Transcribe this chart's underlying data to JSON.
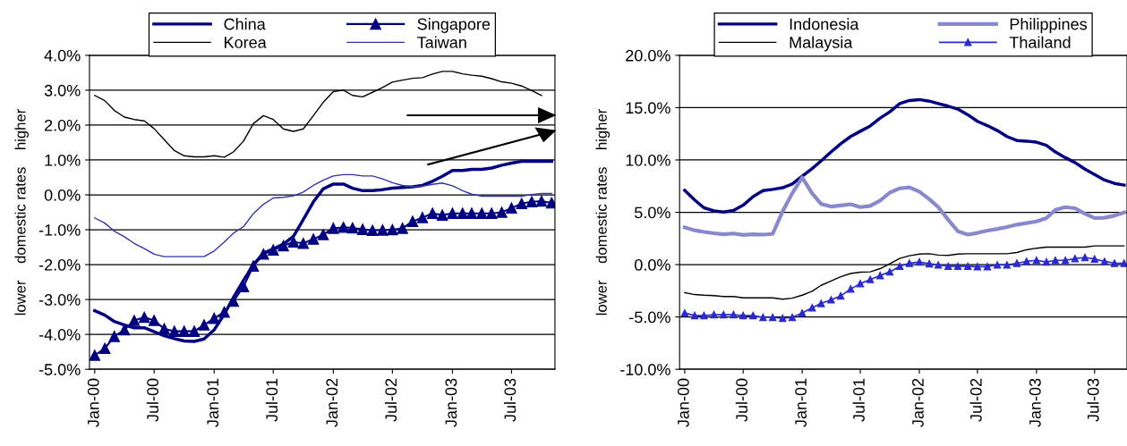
{
  "chart_data": [
    {
      "type": "line",
      "ylabel": "lower    domestic rates    higher",
      "grid": "y",
      "legend": "top",
      "x": [
        "2000-01",
        "2000-02",
        "2000-03",
        "2000-04",
        "2000-05",
        "2000-06",
        "2000-07",
        "2000-08",
        "2000-09",
        "2000-10",
        "2000-11",
        "2000-12",
        "2001-01",
        "2001-02",
        "2001-03",
        "2001-04",
        "2001-05",
        "2001-06",
        "2001-07",
        "2001-08",
        "2001-09",
        "2001-10",
        "2001-11",
        "2001-12",
        "2002-01",
        "2002-02",
        "2002-03",
        "2002-04",
        "2002-05",
        "2002-06",
        "2002-07",
        "2002-08",
        "2002-09",
        "2002-10",
        "2002-11",
        "2002-12",
        "2003-01",
        "2003-02",
        "2003-03",
        "2003-04",
        "2003-05",
        "2003-06",
        "2003-07",
        "2003-08",
        "2003-09",
        "2003-10",
        "2003-11"
      ],
      "xlim": [
        "1999-12-16",
        "2003-11-11"
      ],
      "xticks": [
        {
          "value": "2000-01",
          "label": "Jan-00"
        },
        {
          "value": "2000-07",
          "label": "Jul-00"
        },
        {
          "value": "2001-01",
          "label": "Jan-01"
        },
        {
          "value": "2001-07",
          "label": "Jul-01"
        },
        {
          "value": "2002-01",
          "label": "Jan-02"
        },
        {
          "value": "2002-07",
          "label": "Jul-02"
        },
        {
          "value": "2003-01",
          "label": "Jan-03"
        },
        {
          "value": "2003-07",
          "label": "Jul-03"
        }
      ],
      "ylim": [
        -5,
        4
      ],
      "yticks": [
        {
          "value": -5,
          "label": "-5.0%"
        },
        {
          "value": -4,
          "label": "-4.0%"
        },
        {
          "value": -3,
          "label": "-3.0%"
        },
        {
          "value": -2,
          "label": "-2.0%"
        },
        {
          "value": -1,
          "label": "-1.0%"
        },
        {
          "value": 0,
          "label": "0.0%"
        },
        {
          "value": 1,
          "label": "1.0%"
        },
        {
          "value": 2,
          "label": "2.0%"
        },
        {
          "value": 3,
          "label": "3.0%"
        },
        {
          "value": 4,
          "label": "4.0%"
        }
      ],
      "series": [
        {
          "name": "China",
          "color": "#000080",
          "values": [
            -3.32,
            -3.45,
            -3.63,
            -3.73,
            -3.81,
            -3.81,
            -3.92,
            -4.04,
            -4.12,
            -4.19,
            -4.2,
            -4.13,
            -3.87,
            -3.42,
            -2.94,
            -2.45,
            -2.01,
            -1.67,
            -1.55,
            -1.41,
            -1.19,
            -0.71,
            -0.2,
            0.17,
            0.31,
            0.31,
            0.19,
            0.12,
            0.12,
            0.15,
            0.19,
            0.21,
            0.23,
            0.27,
            0.39,
            0.53,
            0.7,
            0.7,
            0.73,
            0.73,
            0.77,
            0.85,
            0.91,
            0.96,
            0.96,
            0.96,
            0.96
          ]
        },
        {
          "name": "Korea",
          "color": "#000000",
          "values": [
            2.85,
            2.7,
            2.42,
            2.23,
            2.16,
            2.12,
            1.9,
            1.58,
            1.27,
            1.12,
            1.09,
            1.09,
            1.12,
            1.08,
            1.23,
            1.54,
            2.04,
            2.27,
            2.16,
            1.89,
            1.82,
            1.89,
            2.27,
            2.65,
            2.96,
            3.0,
            2.85,
            2.81,
            2.94,
            3.08,
            3.23,
            3.29,
            3.34,
            3.36,
            3.46,
            3.54,
            3.54,
            3.47,
            3.43,
            3.4,
            3.33,
            3.24,
            3.2,
            3.12,
            2.99,
            2.85,
            null
          ]
        },
        {
          "name": "Singapore",
          "color": "#000080",
          "marker": "triangle",
          "values": [
            -4.6,
            -4.4,
            -4.06,
            -3.87,
            -3.6,
            -3.51,
            -3.6,
            -3.84,
            -3.91,
            -3.91,
            -3.91,
            -3.73,
            -3.54,
            -3.36,
            -3.05,
            -2.63,
            -2.04,
            -1.7,
            -1.58,
            -1.46,
            -1.35,
            -1.39,
            -1.27,
            -1.14,
            -0.96,
            -0.93,
            -0.95,
            -0.99,
            -1.02,
            -1.01,
            -1.0,
            -0.96,
            -0.76,
            -0.65,
            -0.53,
            -0.58,
            -0.53,
            -0.53,
            -0.53,
            -0.53,
            -0.53,
            -0.5,
            -0.38,
            -0.25,
            -0.2,
            -0.18,
            -0.23
          ]
        },
        {
          "name": "Taiwan",
          "color": "#3333aa",
          "values": [
            -0.66,
            -0.81,
            -1.04,
            -1.2,
            -1.39,
            -1.54,
            -1.7,
            -1.77,
            -1.77,
            -1.77,
            -1.77,
            -1.77,
            -1.61,
            -1.35,
            -1.1,
            -0.91,
            -0.54,
            -0.27,
            -0.09,
            -0.07,
            -0.03,
            0.08,
            0.27,
            0.42,
            0.54,
            0.58,
            0.58,
            0.54,
            0.54,
            0.46,
            0.35,
            0.27,
            0.23,
            0.25,
            0.3,
            0.34,
            0.26,
            0.12,
            0.02,
            -0.04,
            -0.04,
            -0.04,
            -0.04,
            -0.04,
            0.01,
            0.04,
            0.04
          ]
        }
      ]
    },
    {
      "type": "line",
      "ylabel": "lower    domestic rates    higher",
      "grid": "y",
      "legend": "top",
      "x": [
        "2000-01",
        "2000-02",
        "2000-03",
        "2000-04",
        "2000-05",
        "2000-06",
        "2000-07",
        "2000-08",
        "2000-09",
        "2000-10",
        "2000-11",
        "2000-12",
        "2001-01",
        "2001-02",
        "2001-03",
        "2001-04",
        "2001-05",
        "2001-06",
        "2001-07",
        "2001-08",
        "2001-09",
        "2001-10",
        "2001-11",
        "2001-12",
        "2002-01",
        "2002-02",
        "2002-03",
        "2002-04",
        "2002-05",
        "2002-06",
        "2002-07",
        "2002-08",
        "2002-09",
        "2002-10",
        "2002-11",
        "2002-12",
        "2003-01",
        "2003-02",
        "2003-03",
        "2003-04",
        "2003-05",
        "2003-06",
        "2003-07",
        "2003-08",
        "2003-09",
        "2003-10"
      ],
      "xlim": [
        "1999-12-16",
        "2003-10-10"
      ],
      "xticks": [
        {
          "value": "2000-01",
          "label": "Jan-00"
        },
        {
          "value": "2000-07",
          "label": "Jul-00"
        },
        {
          "value": "2001-01",
          "label": "Jan-01"
        },
        {
          "value": "2001-07",
          "label": "Jul-01"
        },
        {
          "value": "2002-01",
          "label": "Jan-02"
        },
        {
          "value": "2002-07",
          "label": "Jul-02"
        },
        {
          "value": "2003-01",
          "label": "Jan-03"
        },
        {
          "value": "2003-07",
          "label": "Jul-03"
        }
      ],
      "ylim": [
        -10,
        20
      ],
      "yticks": [
        {
          "value": -10,
          "label": "-10.0%"
        },
        {
          "value": -5,
          "label": "-5.0%"
        },
        {
          "value": 0,
          "label": "0.0%"
        },
        {
          "value": 5,
          "label": "5.0%"
        },
        {
          "value": 10,
          "label": "10.0%"
        },
        {
          "value": 15,
          "label": "15.0%"
        },
        {
          "value": 20,
          "label": "20.0%"
        }
      ],
      "series": [
        {
          "name": "Indonesia",
          "color": "#000080",
          "values": [
            7.1,
            6.18,
            5.43,
            5.14,
            5.02,
            5.17,
            5.68,
            6.5,
            7.07,
            7.19,
            7.35,
            7.7,
            8.45,
            9.18,
            9.91,
            10.76,
            11.55,
            12.24,
            12.74,
            13.25,
            14.0,
            14.6,
            15.39,
            15.68,
            15.77,
            15.62,
            15.39,
            15.14,
            14.86,
            14.32,
            13.69,
            13.28,
            12.81,
            12.24,
            11.86,
            11.8,
            11.7,
            11.39,
            10.76,
            10.22,
            9.75,
            9.12,
            8.61,
            8.08,
            7.76,
            7.6
          ]
        },
        {
          "name": "Malaysia",
          "color": "#000000",
          "values": [
            -2.67,
            -2.86,
            -2.92,
            -2.96,
            -3.05,
            -3.05,
            -3.18,
            -3.18,
            -3.18,
            -3.18,
            -3.3,
            -3.21,
            -2.92,
            -2.55,
            -1.98,
            -1.57,
            -1.16,
            -0.85,
            -0.72,
            -0.69,
            -0.38,
            0.09,
            0.6,
            0.85,
            1.01,
            1.04,
            0.91,
            0.88,
            1.01,
            1.04,
            1.04,
            1.04,
            1.04,
            1.04,
            1.16,
            1.42,
            1.57,
            1.67,
            1.67,
            1.67,
            1.67,
            1.67,
            1.79,
            1.79,
            1.79,
            1.79
          ]
        },
        {
          "name": "Philippines",
          "color": "#8888cc",
          "values": [
            3.56,
            3.28,
            3.12,
            3.0,
            2.9,
            2.97,
            2.84,
            2.9,
            2.87,
            2.93,
            5.08,
            6.81,
            8.33,
            6.81,
            5.8,
            5.55,
            5.65,
            5.77,
            5.49,
            5.61,
            6.12,
            6.88,
            7.29,
            7.38,
            6.97,
            6.25,
            5.49,
            4.29,
            3.19,
            2.87,
            3.03,
            3.25,
            3.41,
            3.6,
            3.82,
            3.97,
            4.13,
            4.45,
            5.24,
            5.49,
            5.39,
            4.86,
            4.45,
            4.48,
            4.67,
            4.98
          ]
        },
        {
          "name": "Thailand",
          "color": "#2a2ad0",
          "marker": "triangle",
          "values": [
            -4.62,
            -4.87,
            -4.87,
            -4.78,
            -4.78,
            -4.78,
            -4.87,
            -4.87,
            -5.03,
            -5.03,
            -5.13,
            -5.03,
            -4.62,
            -4.12,
            -3.71,
            -3.36,
            -2.99,
            -2.33,
            -1.82,
            -1.42,
            -1.04,
            -0.69,
            -0.16,
            0.13,
            0.25,
            0.09,
            -0.03,
            -0.16,
            -0.16,
            -0.16,
            -0.19,
            -0.19,
            -0.03,
            -0.03,
            0.13,
            0.31,
            0.41,
            0.25,
            0.41,
            0.41,
            0.57,
            0.69,
            0.53,
            0.31,
            0.13,
            0.13
          ]
        }
      ]
    }
  ]
}
